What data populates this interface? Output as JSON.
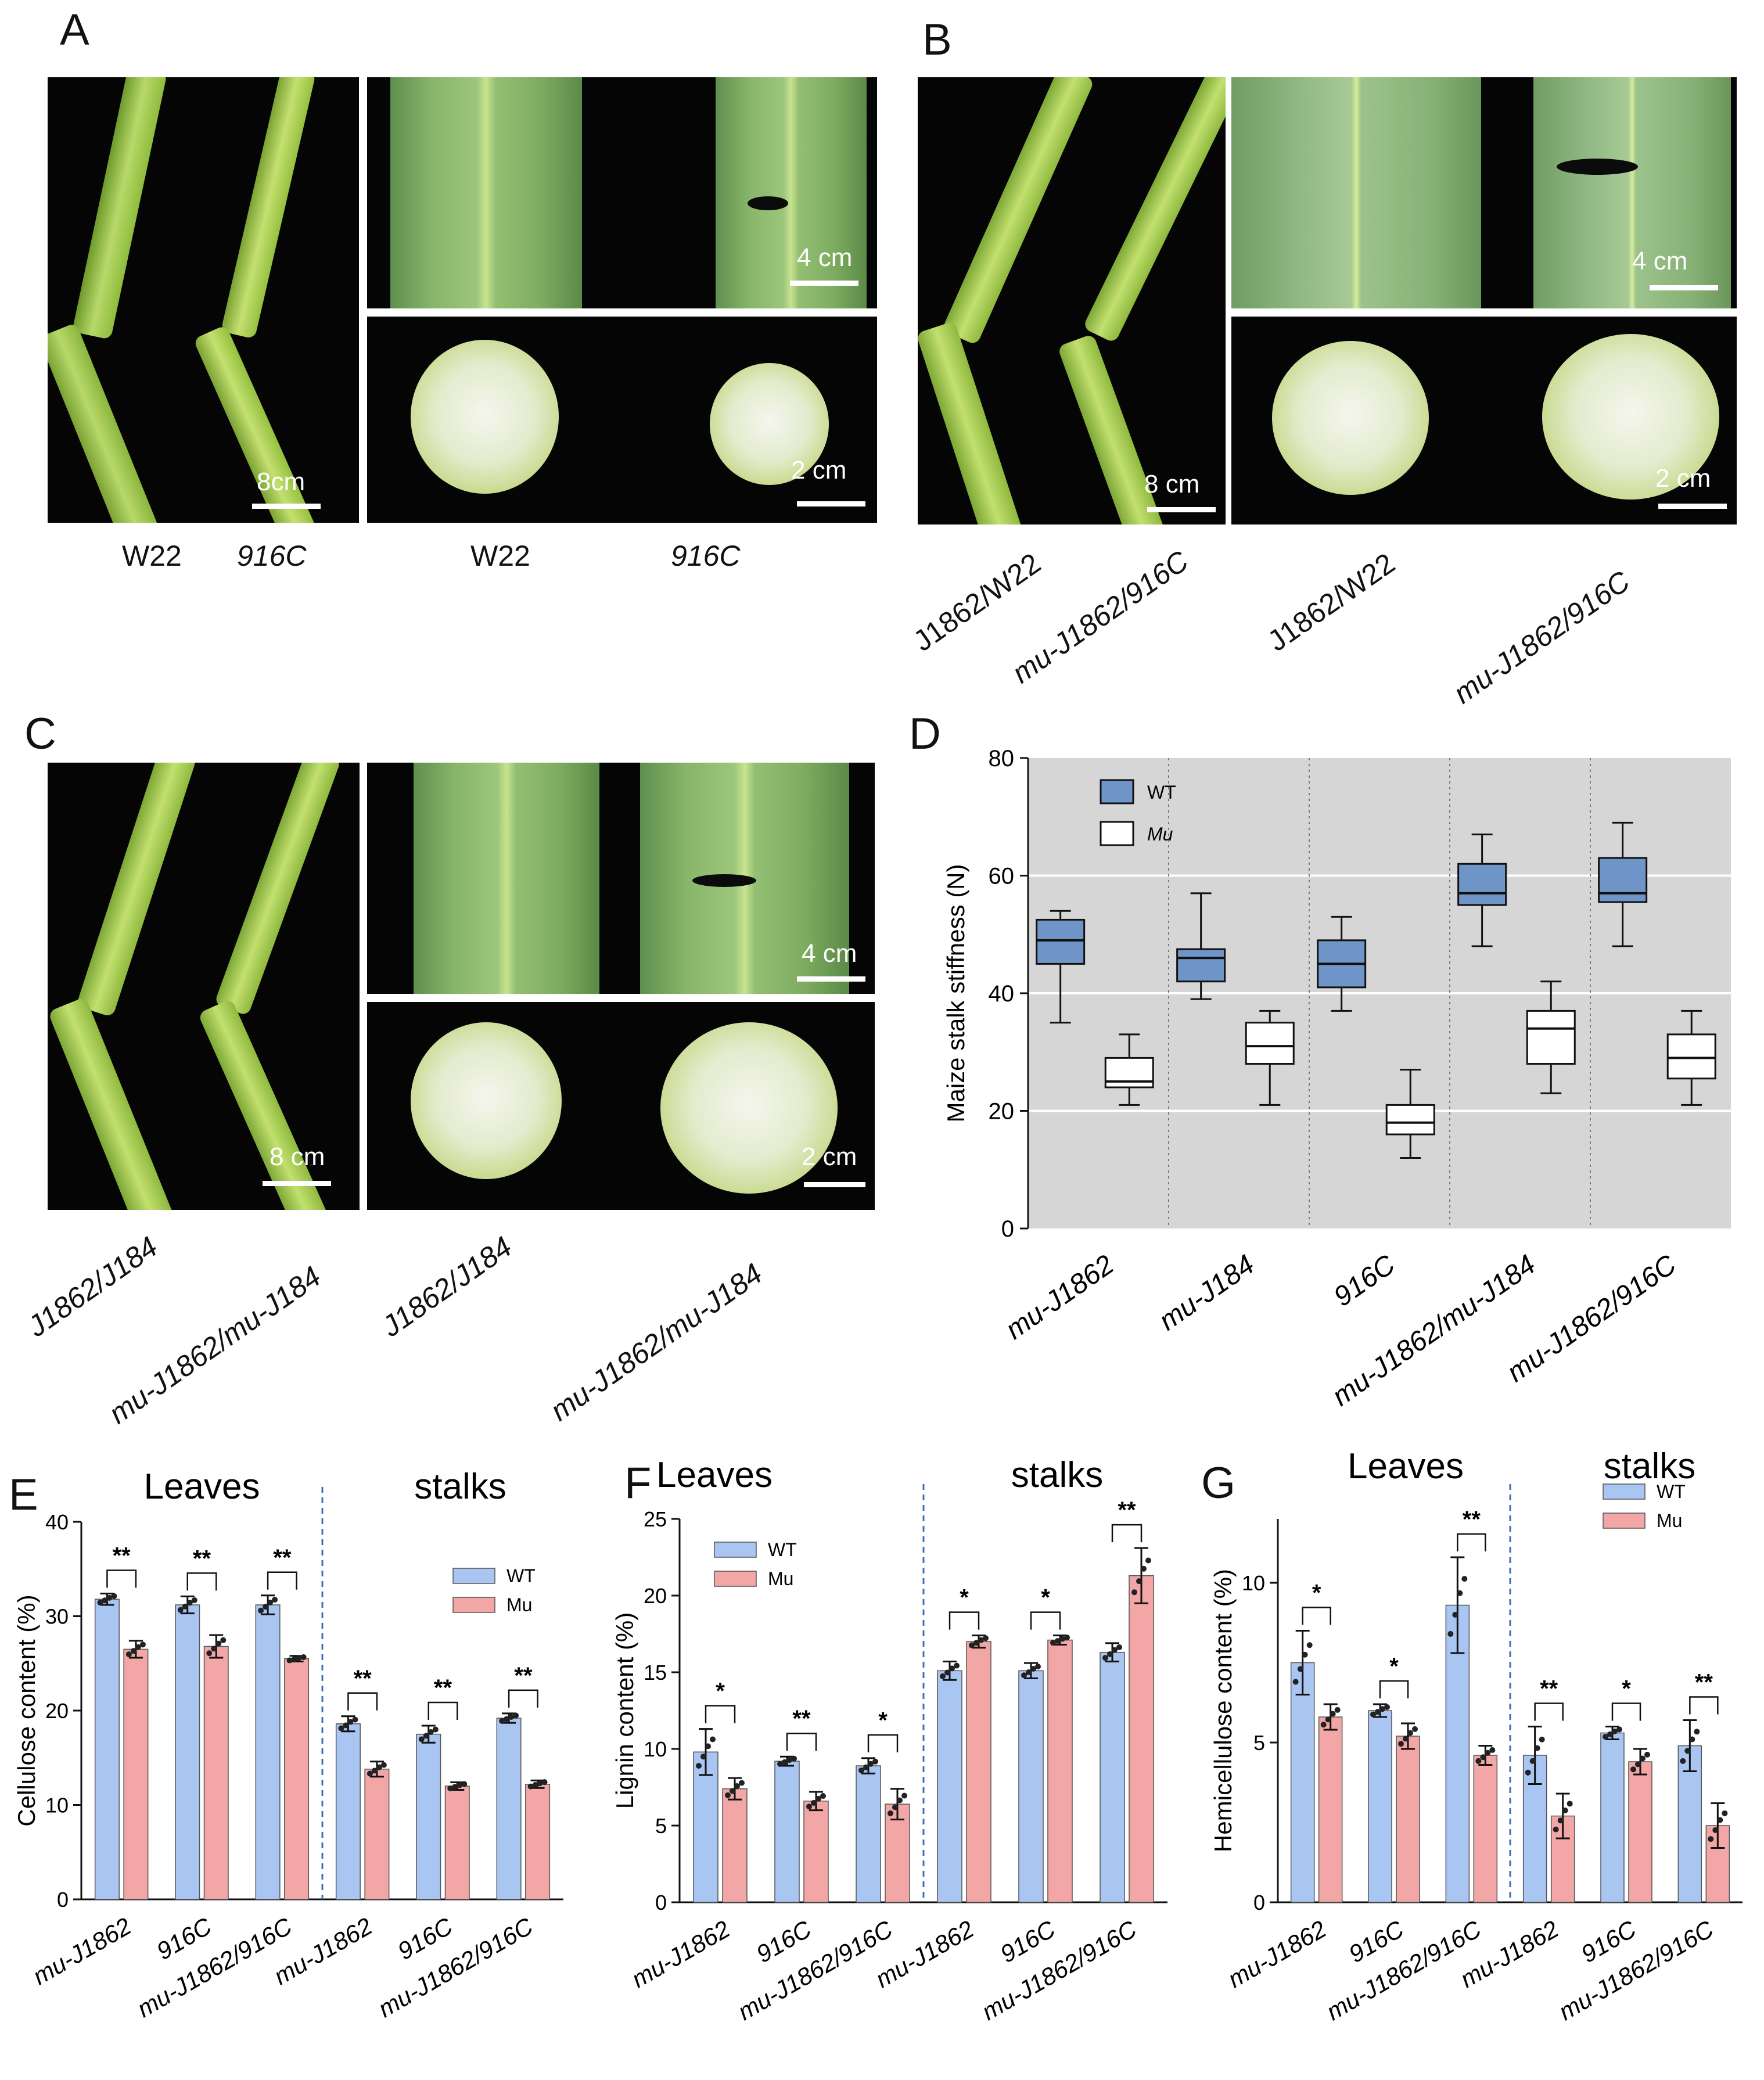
{
  "panels": {
    "A": {
      "letter": "A",
      "stalk_scale": "8cm",
      "leaf_scale": "4 cm",
      "cross_scale": "2 cm",
      "captions": [
        "W22",
        "916C",
        "W22",
        "916C"
      ]
    },
    "B": {
      "letter": "B",
      "stalk_scale": "8 cm",
      "leaf_scale": "4 cm",
      "cross_scale": "2 cm",
      "captions": [
        "J1862/W22",
        "mu-J1862/916C",
        "J1862/W22",
        "mu-J1862/916C"
      ]
    },
    "C": {
      "letter": "C",
      "stalk_scale": "8 cm",
      "leaf_scale": "4 cm",
      "cross_scale": "2 cm",
      "captions": [
        "J1862/J184",
        "mu-J1862/mu-J184",
        "J1862/J184",
        "mu-J1862/mu-J184"
      ]
    },
    "D": {
      "letter": "D"
    },
    "E": {
      "letter": "E"
    },
    "F": {
      "letter": "F"
    },
    "G": {
      "letter": "G"
    }
  },
  "chart_data": [
    {
      "id": "D",
      "type": "box",
      "ylabel": "Maize stalk stiffness (N)",
      "ylim": [
        0,
        80
      ],
      "yticks": [
        0,
        20,
        40,
        60,
        80
      ],
      "categories": [
        "mu-J1862",
        "mu-J184",
        "916C",
        "mu-J1862/mu-J184",
        "mu-J1862/916C"
      ],
      "legend": [
        "WT",
        "Mu"
      ],
      "legend_position": "top-left",
      "colors": {
        "WT": "#6f95c8",
        "Mu": "#ffffff",
        "background": "#d6d6d6"
      },
      "series": [
        {
          "name": "WT",
          "boxes": [
            {
              "min": 35,
              "q1": 45,
              "median": 49,
              "q3": 52.5,
              "max": 54
            },
            {
              "min": 39,
              "q1": 42,
              "median": 46,
              "q3": 47.5,
              "max": 57
            },
            {
              "min": 37,
              "q1": 41,
              "median": 45,
              "q3": 49,
              "max": 53
            },
            {
              "min": 48,
              "q1": 55,
              "median": 57,
              "q3": 62,
              "max": 67
            },
            {
              "min": 48,
              "q1": 55.5,
              "median": 57,
              "q3": 63,
              "max": 69
            }
          ]
        },
        {
          "name": "Mu",
          "boxes": [
            {
              "min": 21,
              "q1": 24,
              "median": 25,
              "q3": 29,
              "max": 33
            },
            {
              "min": 21,
              "q1": 28,
              "median": 31,
              "q3": 35,
              "max": 37
            },
            {
              "min": 12,
              "q1": 16,
              "median": 18,
              "q3": 21,
              "max": 27
            },
            {
              "min": 23,
              "q1": 28,
              "median": 34,
              "q3": 37,
              "max": 42
            },
            {
              "min": 21,
              "q1": 25.5,
              "median": 29,
              "q3": 33,
              "max": 37
            }
          ]
        }
      ]
    },
    {
      "id": "E",
      "type": "bar",
      "ylabel": "Cellulose content (%)",
      "ylim": [
        0,
        40
      ],
      "yticks": [
        0,
        10,
        20,
        30,
        40
      ],
      "groups": [
        "Leaves",
        "stalks"
      ],
      "categories": [
        "mu-J1862",
        "916C",
        "mu-J1862/916C",
        "mu-J1862",
        "916C",
        "mu-J1862/916C"
      ],
      "legend": [
        "WT",
        "Mu"
      ],
      "legend_position": "right",
      "colors": {
        "WT": "#a9c5f2",
        "Mu": "#f2a6a6"
      },
      "series": [
        {
          "name": "WT",
          "values": [
            31.8,
            31.2,
            31.2,
            18.6,
            17.5,
            19.2
          ],
          "errors": [
            0.6,
            0.9,
            1.0,
            0.8,
            0.9,
            0.5
          ]
        },
        {
          "name": "Mu",
          "values": [
            26.5,
            26.8,
            25.5,
            13.8,
            12.0,
            12.2
          ],
          "errors": [
            0.9,
            1.2,
            0.3,
            0.8,
            0.4,
            0.4
          ]
        }
      ],
      "significance": [
        "**",
        "**",
        "**",
        "**",
        "**",
        "**"
      ]
    },
    {
      "id": "F",
      "type": "bar",
      "ylabel": "Lignin content (%)",
      "ylim": [
        0,
        25
      ],
      "yticks": [
        0,
        5,
        10,
        15,
        20,
        25
      ],
      "groups": [
        "Leaves",
        "stalks"
      ],
      "categories": [
        "mu-J1862",
        "916C",
        "mu-J1862/916C",
        "mu-J1862",
        "916C",
        "mu-J1862/916C"
      ],
      "legend": [
        "WT",
        "Mu"
      ],
      "legend_position": "top-left",
      "colors": {
        "WT": "#a9c5f2",
        "Mu": "#f2a6a6"
      },
      "series": [
        {
          "name": "WT",
          "values": [
            9.8,
            9.2,
            8.9,
            15.1,
            15.1,
            16.3
          ],
          "errors": [
            1.5,
            0.3,
            0.5,
            0.6,
            0.5,
            0.6
          ]
        },
        {
          "name": "Mu",
          "values": [
            7.4,
            6.6,
            6.4,
            17.0,
            17.1,
            21.3
          ],
          "errors": [
            0.7,
            0.6,
            1.0,
            0.4,
            0.3,
            1.8
          ]
        }
      ],
      "significance": [
        "*",
        "**",
        "*",
        "*",
        "*",
        "**"
      ]
    },
    {
      "id": "G",
      "type": "bar",
      "ylabel": "Hemicellulose content (%)",
      "ylim": [
        0,
        12
      ],
      "yticks": [
        0,
        5,
        10
      ],
      "groups": [
        "Leaves",
        "stalks"
      ],
      "categories": [
        "mu-J1862",
        "916C",
        "mu-J1862/916C",
        "mu-J1862",
        "916C",
        "mu-J1862/916C"
      ],
      "legend": [
        "WT",
        "Mu"
      ],
      "legend_position": "top-right",
      "colors": {
        "WT": "#a9c5f2",
        "Mu": "#f2a6a6"
      },
      "series": [
        {
          "name": "WT",
          "values": [
            7.5,
            6.0,
            9.3,
            4.6,
            5.3,
            4.9
          ],
          "errors": [
            1.0,
            0.2,
            1.5,
            0.9,
            0.2,
            0.8
          ]
        },
        {
          "name": "Mu",
          "values": [
            5.8,
            5.2,
            4.6,
            2.7,
            4.4,
            2.4
          ],
          "errors": [
            0.4,
            0.4,
            0.3,
            0.7,
            0.4,
            0.7
          ]
        }
      ],
      "significance": [
        "*",
        "*",
        "**",
        "**",
        "*",
        "**"
      ]
    }
  ]
}
